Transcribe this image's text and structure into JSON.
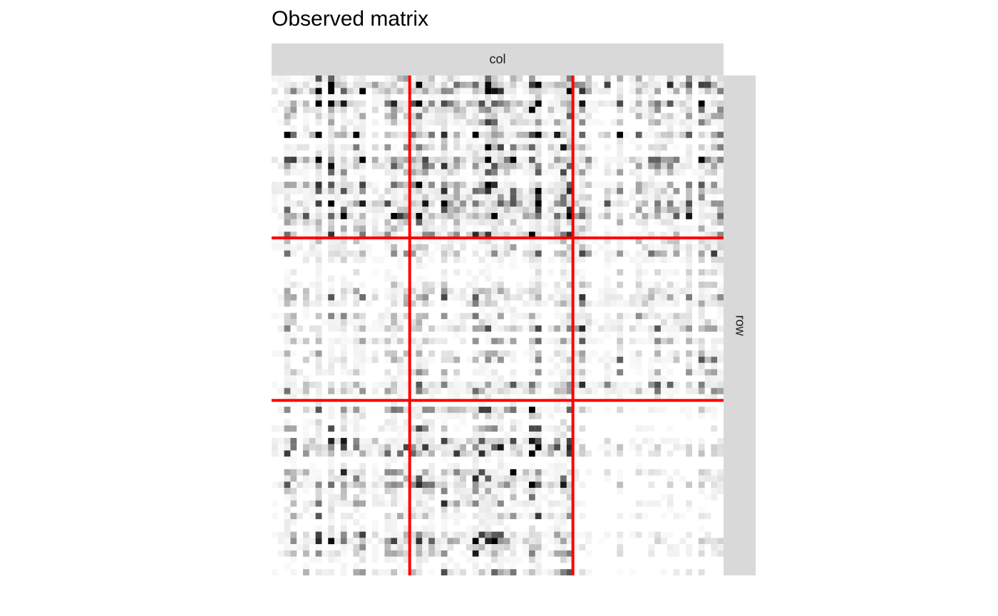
{
  "title": "Observed matrix",
  "strip_top_label": "col",
  "strip_right_label": "row",
  "colors": {
    "background": "#ffffff",
    "strip": "#d9d9d9",
    "cell": "#000000",
    "partition_line": "#ff0000"
  },
  "chart_data": {
    "type": "heatmap",
    "title": "Observed matrix",
    "facet_col_label": "col",
    "facet_row_label": "row",
    "n_rows": 80,
    "n_cols": 72,
    "scale": "greyscale, white = 0, black = max",
    "column_block_boundaries": [
      21.5,
      47.5
    ],
    "row_block_boundaries": [
      25.5,
      51.5
    ],
    "row_blocks": 3,
    "column_blocks": 3,
    "block_intensity": [
      [
        0.3,
        0.4,
        0.22
      ],
      [
        0.16,
        0.15,
        0.18
      ],
      [
        0.22,
        0.28,
        0.05
      ]
    ],
    "legend": "none",
    "grid": false
  }
}
